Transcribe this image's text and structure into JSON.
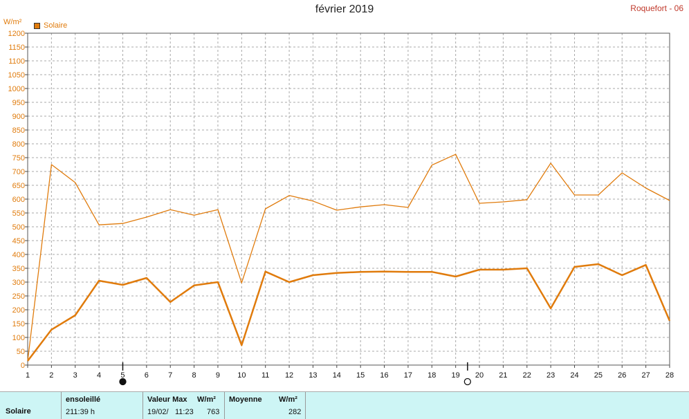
{
  "header": {
    "title": "février 2019",
    "station": "Roquefort - 06",
    "unit": "W/m²",
    "legend": "Solaire"
  },
  "chart_data": {
    "type": "line",
    "x": [
      1,
      2,
      3,
      4,
      5,
      6,
      7,
      8,
      9,
      10,
      11,
      12,
      13,
      14,
      15,
      16,
      17,
      18,
      19,
      20,
      21,
      22,
      23,
      24,
      25,
      26,
      27,
      28
    ],
    "ylim": [
      0,
      1200
    ],
    "ytick_step": 50,
    "grid": true,
    "color": "#e07b0c",
    "series": [
      {
        "values": [
          15,
          725,
          660,
          507,
          512,
          535,
          562,
          542,
          562,
          297,
          565,
          613,
          593,
          560,
          572,
          580,
          570,
          723,
          762,
          585,
          590,
          598,
          730,
          615,
          615,
          695,
          640,
          595
        ]
      },
      {
        "values": [
          15,
          128,
          180,
          305,
          290,
          315,
          228,
          288,
          300,
          72,
          338,
          300,
          325,
          333,
          337,
          338,
          337,
          337,
          320,
          345,
          345,
          350,
          205,
          355,
          365,
          325,
          362,
          160
        ]
      }
    ],
    "moon_phases": [
      {
        "day": 5,
        "phase": "new-moon"
      },
      {
        "day": 19.5,
        "phase": "full-moon"
      }
    ]
  },
  "summary": {
    "row_label": "Solaire",
    "sunshine_header": "ensoleillé",
    "sunshine_value": "211:39 h",
    "max_header": "Valeur Max",
    "max_unit": "W/m²",
    "max_date": "19/02/",
    "max_time": "11:23",
    "max_value": "763",
    "mean_header": "Moyenne",
    "mean_unit": "W/m²",
    "mean_value": "282"
  }
}
